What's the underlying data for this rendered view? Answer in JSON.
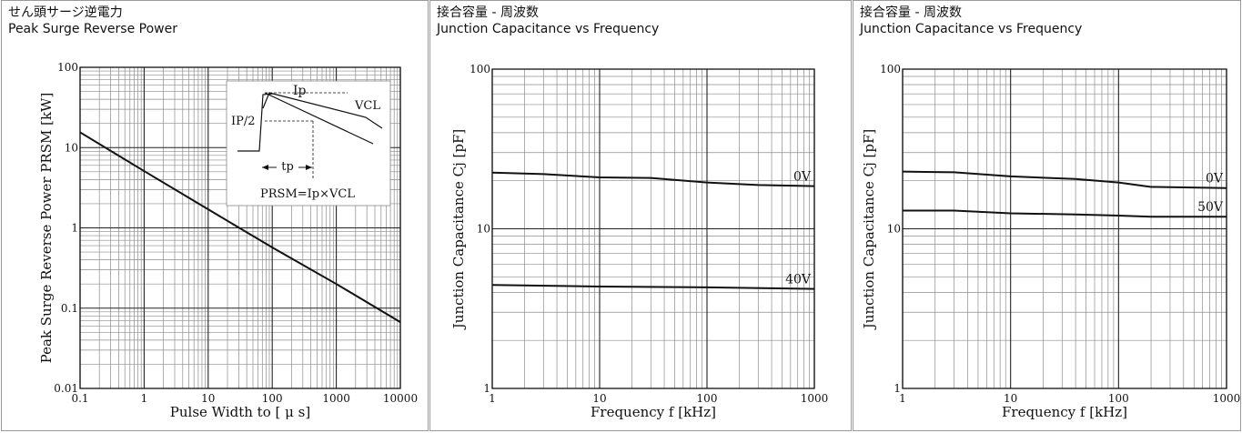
{
  "colors": {
    "background": "#ffffff",
    "frame": "#9a9a9a",
    "grid": "#8c8c8c",
    "curve": "#111111"
  },
  "chart_data": [
    {
      "type": "line",
      "title": "せん頭サージ逆電力",
      "subtitle": "Peak Surge Reverse Power",
      "xlabel": "Pulse Width to [ μ s]",
      "ylabel": "Peak Surge Reverse Power PRSM [kW]",
      "xscale": "log",
      "yscale": "log",
      "xlim": [
        0.1,
        10000
      ],
      "ylim": [
        0.01,
        100
      ],
      "xticks": [
        "0.1",
        "1",
        "10",
        "100",
        "1000",
        "10000"
      ],
      "yticks": [
        "0.01",
        "0.1",
        "1",
        "10",
        "100"
      ],
      "grid": true,
      "series": [
        {
          "x": [
            0.1,
            1,
            10,
            100,
            1000,
            10000
          ],
          "y": [
            15.5,
            5.1,
            1.7,
            0.57,
            0.2,
            0.067
          ]
        }
      ],
      "annotations": {
        "ip": "Ip",
        "vcl": "VCL",
        "half": "IP/2",
        "tp": "tp",
        "formula": "PRSM=Ip×VCL"
      }
    },
    {
      "type": "line",
      "title": "接合容量 - 周波数",
      "subtitle": "Junction Capacitance vs Frequency",
      "xlabel": "Frequency f [kHz]",
      "ylabel": "Junction Capacitance Cj [pF]",
      "xscale": "log",
      "yscale": "log",
      "xlim": [
        1,
        1000
      ],
      "ylim": [
        1,
        100
      ],
      "xticks": [
        "1",
        "10",
        "100",
        "1000"
      ],
      "yticks": [
        "1",
        "10",
        "100"
      ],
      "grid": true,
      "series": [
        {
          "name": "0V",
          "x": [
            1,
            3,
            10,
            30,
            100,
            300,
            1000
          ],
          "y": [
            22.5,
            22,
            21,
            20.8,
            19.5,
            18.8,
            18.5
          ]
        },
        {
          "name": "40V",
          "x": [
            1,
            10,
            100,
            1000
          ],
          "y": [
            4.45,
            4.35,
            4.3,
            4.2
          ]
        }
      ]
    },
    {
      "type": "line",
      "title": "接合容量 - 周波数",
      "subtitle": "Junction Capacitance vs Frequency",
      "xlabel": "Frequency f [kHz]",
      "ylabel": "Junction Capacitance Cj [pF]",
      "xscale": "log",
      "yscale": "log",
      "xlim": [
        1,
        1000
      ],
      "ylim": [
        1,
        100
      ],
      "xticks": [
        "1",
        "10",
        "100",
        "1000"
      ],
      "yticks": [
        "1",
        "10",
        "100"
      ],
      "grid": true,
      "series": [
        {
          "name": "0V",
          "x": [
            1,
            3,
            10,
            40,
            100,
            200,
            1000
          ],
          "y": [
            22.8,
            22.6,
            21.3,
            20.5,
            19.5,
            18.3,
            18
          ]
        },
        {
          "name": "50V",
          "x": [
            1,
            3,
            10,
            40,
            100,
            200,
            1000
          ],
          "y": [
            13,
            13,
            12.5,
            12.3,
            12.1,
            11.9,
            11.9
          ]
        }
      ]
    }
  ]
}
